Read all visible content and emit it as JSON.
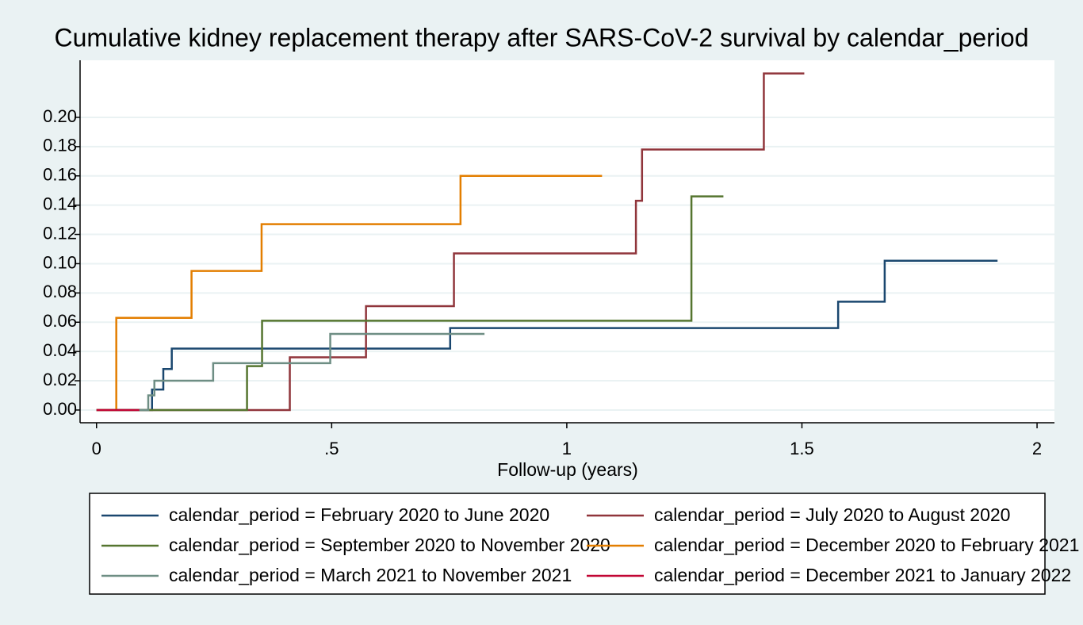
{
  "chart_data": {
    "type": "step",
    "title": "Cumulative kidney replacement therapy after SARS-CoV-2 survival by calendar_period",
    "xlabel": "Follow-up (years)",
    "xlim": [
      -0.035,
      2.037
    ],
    "ylim": [
      -0.0087,
      0.239
    ],
    "xticks": [
      0,
      {
        "value": 0.5,
        "label": ".5"
      },
      1,
      1.5,
      2
    ],
    "yticks": [
      {
        "value": 0,
        "label": "0.00"
      },
      {
        "value": 0.02,
        "label": "0.02"
      },
      {
        "value": 0.04,
        "label": "0.04"
      },
      {
        "value": 0.06,
        "label": "0.06"
      },
      {
        "value": 0.08,
        "label": "0.08"
      },
      {
        "value": 0.1,
        "label": "0.10"
      },
      {
        "value": 0.12,
        "label": "0.12"
      },
      {
        "value": 0.14,
        "label": "0.14"
      },
      {
        "value": 0.16,
        "label": "0.16"
      },
      {
        "value": 0.18,
        "label": "0.18"
      },
      {
        "value": 0.2,
        "label": "0.20"
      }
    ],
    "grid": true,
    "series": [
      {
        "name": "calendar_period = February 2020 to June 2020",
        "color": "#1a476f",
        "x": [
          0,
          0.118,
          0.142,
          0.16,
          0.752,
          1.577,
          1.676,
          1.916
        ],
        "values": [
          0,
          0.014,
          0.028,
          0.042,
          0.056,
          0.074,
          0.102,
          0.102
        ]
      },
      {
        "name": "calendar_period = July 2020 to August 2020",
        "color": "#90353b",
        "x": [
          0,
          0.411,
          0.573,
          0.76,
          1.147,
          1.16,
          1.419,
          1.505
        ],
        "values": [
          0,
          0.036,
          0.071,
          0.107,
          0.143,
          0.178,
          0.23,
          0.23
        ]
      },
      {
        "name": "calendar_period = September 2020 to November 2020",
        "color": "#55752f",
        "x": [
          0,
          0.32,
          0.352,
          1.265,
          1.333
        ],
        "values": [
          0,
          0.03,
          0.061,
          0.146,
          0.146
        ]
      },
      {
        "name": "calendar_period = December 2020 to February 2021",
        "color": "#e37e00",
        "x": [
          0,
          0.042,
          0.202,
          0.351,
          0.774,
          1.075
        ],
        "values": [
          0,
          0.063,
          0.095,
          0.127,
          0.16,
          0.16
        ]
      },
      {
        "name": "calendar_period = March 2021 to November 2021",
        "color": "#6e8e84",
        "x": [
          0,
          0.11,
          0.123,
          0.248,
          0.497,
          0.825
        ],
        "values": [
          0,
          0.01,
          0.02,
          0.032,
          0.052,
          0.052
        ]
      },
      {
        "name": "calendar_period = December 2021 to January 2022",
        "color": "#c10534",
        "x": [
          0,
          0.091
        ],
        "values": [
          0,
          0
        ]
      }
    ]
  }
}
